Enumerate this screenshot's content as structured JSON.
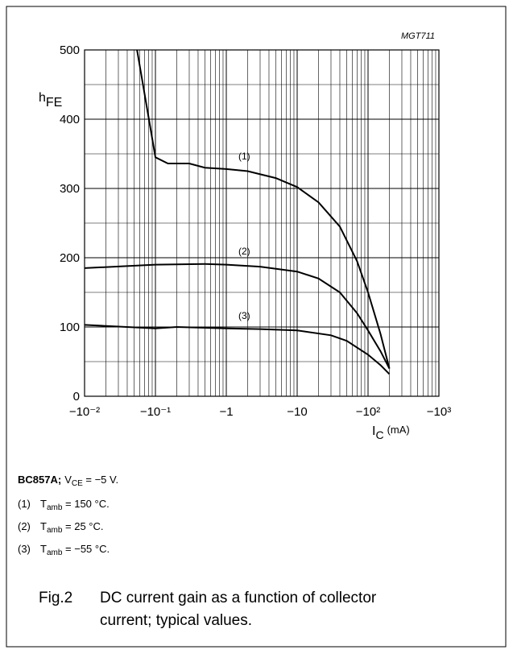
{
  "chart_data": {
    "type": "line",
    "code": "MGT711",
    "y_label": {
      "main": "h",
      "sub": "FE"
    },
    "x_label": {
      "main": "I",
      "sub": "C",
      "unit": "(mA)"
    },
    "log_x": true,
    "grid": true,
    "xlim": [
      -0.01,
      -1000
    ],
    "ylim": [
      0,
      500
    ],
    "yticks": [
      0,
      100,
      200,
      300,
      400,
      500
    ],
    "xticks": [
      {
        "value": -0.01,
        "label": "−10⁻²"
      },
      {
        "value": -0.1,
        "label": "−10⁻¹"
      },
      {
        "value": -1,
        "label": "−1"
      },
      {
        "value": -10,
        "label": "−10"
      },
      {
        "value": -100,
        "label": "−10²"
      },
      {
        "value": -1000,
        "label": "−10³"
      }
    ],
    "series": [
      {
        "name": "(1)",
        "color": "#000000",
        "x": [
          -0.055,
          -0.1,
          -0.15,
          -0.3,
          -0.5,
          -1,
          -2,
          -5,
          -10,
          -20,
          -40,
          -70,
          -100,
          -150,
          -200
        ],
        "values": [
          500,
          345,
          336,
          336,
          330,
          328,
          325,
          315,
          302,
          280,
          245,
          195,
          150,
          90,
          40
        ]
      },
      {
        "name": "(2)",
        "color": "#000000",
        "x": [
          -0.01,
          -0.1,
          -0.5,
          -1,
          -3,
          -10,
          -20,
          -40,
          -70,
          -100,
          -150,
          -200
        ],
        "values": [
          185,
          190,
          191,
          190,
          187,
          180,
          170,
          150,
          120,
          95,
          65,
          40
        ]
      },
      {
        "name": "(3)",
        "color": "#000000",
        "x": [
          -0.01,
          -0.1,
          -0.2,
          -1,
          -3,
          -10,
          -30,
          -50,
          -100,
          -150,
          -200
        ],
        "values": [
          103,
          98,
          100,
          98,
          97,
          95,
          88,
          80,
          60,
          45,
          32
        ]
      }
    ]
  },
  "notes": {
    "device": "BC857A;",
    "cond_main": "V",
    "cond_sub": "CE",
    "cond_rest": " = −5 V.",
    "items": [
      {
        "num": "(1)",
        "main": "T",
        "sub": "amb",
        "rest": " = 150 °C."
      },
      {
        "num": "(2)",
        "main": "T",
        "sub": "amb",
        "rest": " = 25 °C."
      },
      {
        "num": "(3)",
        "main": "T",
        "sub": "amb",
        "rest": " = −55 °C."
      }
    ]
  },
  "caption": {
    "fig": "Fig.2",
    "lines": [
      "DC current gain as a function of collector",
      "current; typical values."
    ]
  }
}
